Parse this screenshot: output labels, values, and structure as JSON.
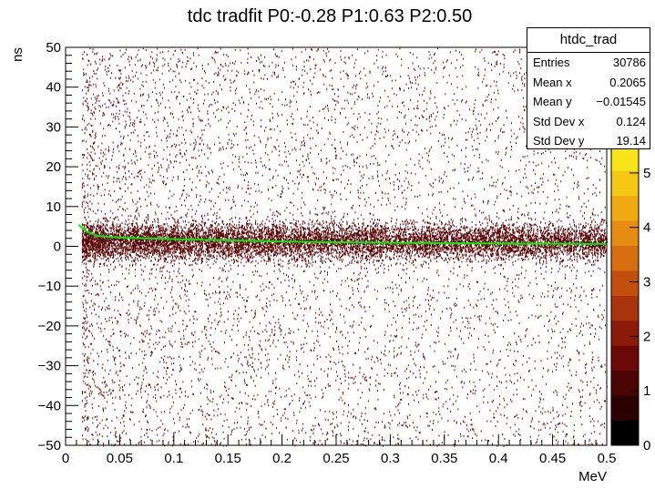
{
  "chart_data": {
    "type": "heatmap",
    "title": "tdc tradfit P0:-0.28 P1:0.63 P2:0.50",
    "xlabel": "MeV",
    "ylabel": "ns",
    "xlim": [
      0,
      0.5
    ],
    "ylim": [
      -50,
      50
    ],
    "x_ticks": [
      "0",
      "0.05",
      "0.1",
      "0.15",
      "0.2",
      "0.25",
      "0.3",
      "0.35",
      "0.4",
      "0.45",
      "0.5"
    ],
    "y_ticks": [
      "−50",
      "−40",
      "−30",
      "−20",
      "−10",
      "0",
      "10",
      "20",
      "30",
      "40",
      "50"
    ],
    "colorbar": {
      "range": [
        0,
        5.5
      ],
      "ticks": [
        "0",
        "1",
        "2",
        "3",
        "4",
        "5"
      ]
    },
    "fit_params": {
      "P0": -0.28,
      "P1": 0.63,
      "P2": 0.5
    },
    "fit_curve": {
      "color": "#00ee00",
      "x": [
        0.012,
        0.02,
        0.03,
        0.05,
        0.1,
        0.2,
        0.3,
        0.4,
        0.5
      ],
      "y": [
        5.4,
        3.6,
        2.6,
        2.2,
        1.8,
        1.2,
        0.9,
        0.7,
        0.6
      ]
    },
    "band": {
      "center_y": 1.5,
      "width_y": 3.2,
      "x_start": 0.015
    }
  },
  "stats_box": {
    "title": "htdc_trad",
    "rows": [
      {
        "label": "Entries",
        "value": "30786"
      },
      {
        "label": "Mean x",
        "value": "0.2065"
      },
      {
        "label": "Mean y",
        "value": "−0.01545"
      },
      {
        "label": "Std Dev x",
        "value": "0.124"
      },
      {
        "label": "Std Dev y",
        "value": "19.14"
      }
    ]
  },
  "colors": {
    "palette": [
      "#000000",
      "#2b0000",
      "#4b0303",
      "#6b0808",
      "#8b1a0a",
      "#a8330c",
      "#c24f0e",
      "#d66d10",
      "#e68c12",
      "#f0aa14",
      "#f5c816",
      "#f8e418"
    ],
    "fit": "#00ee00"
  }
}
